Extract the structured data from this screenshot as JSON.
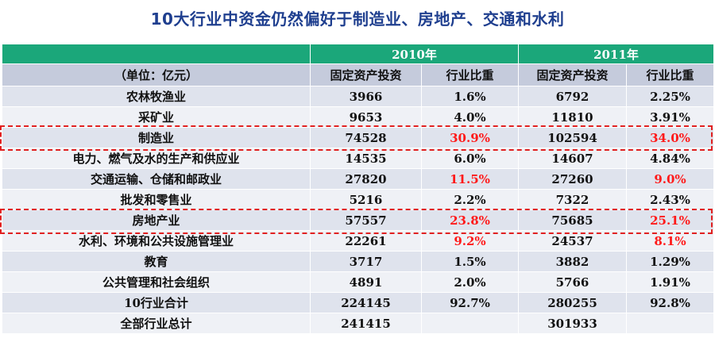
{
  "title": "10大行业中资金仍然偏好于制造业、房地产、交通和水利",
  "colors": {
    "header_green": "#1ba77a",
    "highlight_red": "#ff1a1a",
    "title_blue": "#1f3f8f"
  },
  "header": {
    "year1": "2010年",
    "year2": "2011年",
    "unit": "（单位：亿元）",
    "col_invest": "固定资产投资",
    "col_share": "行业比重"
  },
  "rows": [
    {
      "name": "农林牧渔业",
      "inv2010": "3966",
      "share2010": "1.6%",
      "inv2011": "6792",
      "share2011": "2.25%"
    },
    {
      "name": "采矿业",
      "inv2010": "9653",
      "share2010": "4.0%",
      "inv2011": "11810",
      "share2011": "3.91%"
    },
    {
      "name": "制造业",
      "inv2010": "74528",
      "share2010": "30.9%",
      "inv2011": "102594",
      "share2011": "34.0%"
    },
    {
      "name": "电力、燃气及水的生产和供应业",
      "inv2010": "14535",
      "share2010": "6.0%",
      "inv2011": "14607",
      "share2011": "4.84%"
    },
    {
      "name": "交通运输、仓储和邮政业",
      "inv2010": "27820",
      "share2010": "11.5%",
      "inv2011": "27260",
      "share2011": "9.0%"
    },
    {
      "name": "批发和零售业",
      "inv2010": "5216",
      "share2010": "2.2%",
      "inv2011": "7322",
      "share2011": "2.43%"
    },
    {
      "name": "房地产业",
      "inv2010": "57557",
      "share2010": "23.8%",
      "inv2011": "75685",
      "share2011": "25.1%"
    },
    {
      "name": "水利、环境和公共设施管理业",
      "inv2010": "22261",
      "share2010": "9.2%",
      "inv2011": "24537",
      "share2011": "8.1%"
    },
    {
      "name": "教育",
      "inv2010": "3717",
      "share2010": "1.5%",
      "inv2011": "3882",
      "share2011": "1.29%"
    },
    {
      "name": "公共管理和社会组织",
      "inv2010": "4891",
      "share2010": "2.0%",
      "inv2011": "5766",
      "share2011": "1.91%"
    },
    {
      "name": "10行业合计",
      "inv2010": "224145",
      "share2010": "92.7%",
      "inv2011": "280255",
      "share2011": "92.8%"
    },
    {
      "name": "全部行业总计",
      "inv2010": "241415",
      "share2010": "",
      "inv2011": "301933",
      "share2011": ""
    }
  ]
}
